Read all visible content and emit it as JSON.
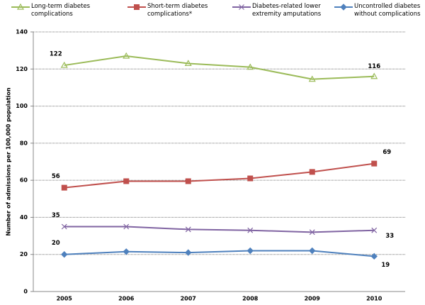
{
  "chart_data": {
    "type": "line",
    "y_label": "Number of admissions per 100,000 population",
    "categories": [
      "2005",
      "2006",
      "2007",
      "2008",
      "2009",
      "2010"
    ],
    "series": [
      {
        "name": "Long-term diabetes complications",
        "color": "#9bbb59",
        "marker": "triangle",
        "values": [
          122,
          127,
          123,
          121,
          114.5,
          116
        ],
        "value_labels": [
          "122",
          null,
          null,
          null,
          null,
          "116"
        ]
      },
      {
        "name": "Short-term diabetes complications*",
        "color": "#c0504d",
        "marker": "square",
        "values": [
          56,
          59.5,
          59.5,
          61,
          64.5,
          69
        ],
        "value_labels": [
          "56",
          null,
          null,
          null,
          null,
          "69"
        ]
      },
      {
        "name": "Diabetes-related lower extremity amputations",
        "color": "#8064a2",
        "marker": "x",
        "values": [
          35,
          35,
          33.5,
          33,
          32,
          33
        ],
        "value_labels": [
          "35",
          null,
          null,
          null,
          null,
          "33"
        ]
      },
      {
        "name": "Uncontrolled diabetes without complications",
        "color": "#4f81bd",
        "marker": "diamond",
        "values": [
          20,
          21.5,
          21,
          22,
          22,
          19
        ],
        "value_labels": [
          "20",
          null,
          null,
          null,
          null,
          "19"
        ]
      }
    ],
    "ylim": [
      0,
      140
    ],
    "yticks": [
      0,
      20,
      40,
      60,
      80,
      100,
      120,
      140
    ],
    "grid": true
  }
}
